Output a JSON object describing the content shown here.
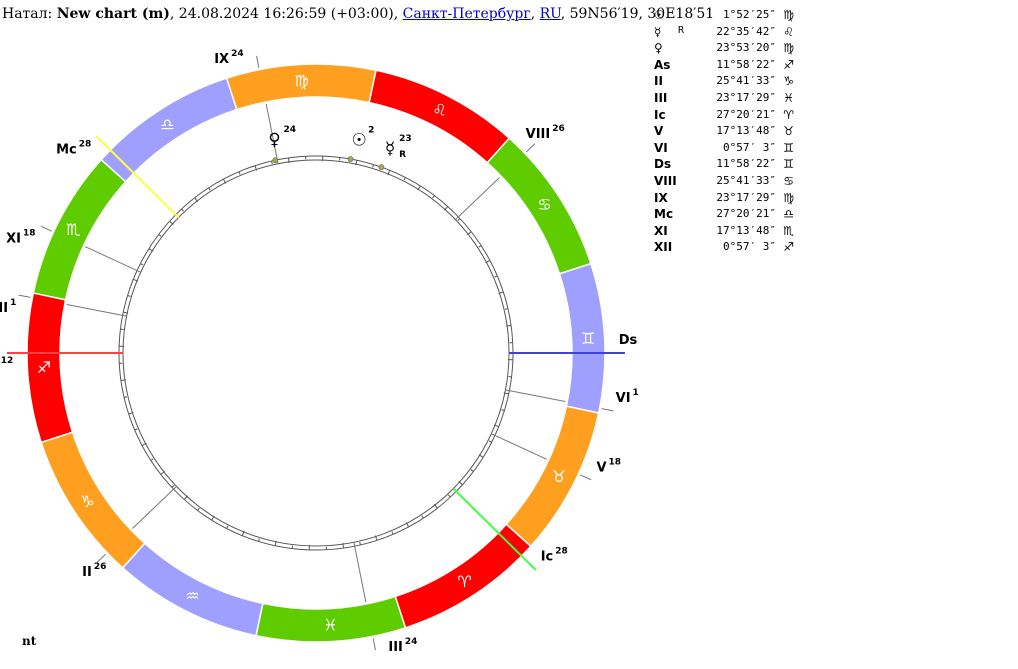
{
  "header": {
    "prefix": "Натал: ",
    "title": "New chart (m)",
    "datetime": ", 24.08.2024 16:26:59 (+03:00), ",
    "city": "Санкт-Петербург",
    "sep": ", ",
    "country": "RU",
    "coords": ", 59N56′19, 30E18′51"
  },
  "footer": {
    "text": "nt"
  },
  "colors": {
    "fire": "#ff0000",
    "earth": "#ff9f1f",
    "air": "#9f9fff",
    "water": "#5fcc00",
    "asc_line": "#ff4040",
    "dsc_line": "#3f3fdd",
    "mc_line": "#ffff40",
    "ic_line": "#40ff40",
    "planet_dot": "#aaaa44"
  },
  "wheel": {
    "ascendant_longitude": 251.97,
    "signs": [
      {
        "name": "aries",
        "glyph": "♈",
        "element": "fire"
      },
      {
        "name": "taurus",
        "glyph": "♉",
        "element": "earth"
      },
      {
        "name": "gemini",
        "glyph": "♊",
        "element": "air"
      },
      {
        "name": "cancer",
        "glyph": "♋",
        "element": "water"
      },
      {
        "name": "leo",
        "glyph": "♌",
        "element": "fire"
      },
      {
        "name": "virgo",
        "glyph": "♍",
        "element": "earth"
      },
      {
        "name": "libra",
        "glyph": "♎",
        "element": "air"
      },
      {
        "name": "scorpio",
        "glyph": "♏",
        "element": "water"
      },
      {
        "name": "sagittarius",
        "glyph": "♐",
        "element": "fire"
      },
      {
        "name": "capricorn",
        "glyph": "♑",
        "element": "earth"
      },
      {
        "name": "aquarius",
        "glyph": "♒",
        "element": "air"
      },
      {
        "name": "pisces",
        "glyph": "♓",
        "element": "water"
      }
    ],
    "cusps": [
      {
        "label": "As",
        "degree": "12",
        "longitude": 251.97,
        "angle": "asc"
      },
      {
        "label": "II",
        "degree": "26",
        "longitude": 295.69,
        "angle": ""
      },
      {
        "label": "III",
        "degree": "24",
        "longitude": 353.29,
        "angle": ""
      },
      {
        "label": "Ic",
        "degree": "28",
        "longitude": 27.34,
        "angle": "ic"
      },
      {
        "label": "V",
        "degree": "18",
        "longitude": 47.23,
        "angle": ""
      },
      {
        "label": "VI",
        "degree": "1",
        "longitude": 60.95,
        "angle": ""
      },
      {
        "label": "Ds",
        "degree": "12",
        "longitude": 71.97,
        "angle": "dsc"
      },
      {
        "label": "VIII",
        "degree": "26",
        "longitude": 115.69,
        "angle": ""
      },
      {
        "label": "IX",
        "degree": "24",
        "longitude": 173.29,
        "angle": ""
      },
      {
        "label": "Mc",
        "degree": "28",
        "longitude": 207.34,
        "angle": "mc"
      },
      {
        "label": "XI",
        "degree": "18",
        "longitude": 227.23,
        "angle": ""
      },
      {
        "label": "XII",
        "degree": "1",
        "longitude": 240.95,
        "angle": ""
      }
    ],
    "planets": [
      {
        "name": "sun",
        "glyph": "☉",
        "degree": "2",
        "retro": "",
        "longitude": 151.87,
        "glyph_longitude": 150.5
      },
      {
        "name": "mercury",
        "glyph": "☿",
        "degree": "23",
        "retro": "R",
        "longitude": 142.59,
        "glyph_longitude": 142.0
      },
      {
        "name": "venus",
        "glyph": "♀",
        "degree": "24",
        "retro": "",
        "longitude": 173.89,
        "glyph_longitude": 173.0
      }
    ]
  },
  "table": [
    {
      "symbol": "☉",
      "name": "sun",
      "retro": "",
      "position": "1°52′25″",
      "sign_glyph": "♍",
      "sign": "virgo"
    },
    {
      "symbol": "☿",
      "name": "mercury",
      "retro": "R",
      "position": "22°35′42″",
      "sign_glyph": "♌",
      "sign": "leo"
    },
    {
      "symbol": "♀",
      "name": "venus",
      "retro": "",
      "position": "23°53′20″",
      "sign_glyph": "♍",
      "sign": "virgo"
    },
    {
      "symbol": "As",
      "name": "ascendant",
      "retro": "",
      "position": "11°58′22″",
      "sign_glyph": "♐",
      "sign": "sagittarius"
    },
    {
      "symbol": "II",
      "name": "house-2",
      "retro": "",
      "position": "25°41′33″",
      "sign_glyph": "♑",
      "sign": "capricorn"
    },
    {
      "symbol": "III",
      "name": "house-3",
      "retro": "",
      "position": "23°17′29″",
      "sign_glyph": "♓",
      "sign": "pisces"
    },
    {
      "symbol": "Ic",
      "name": "imum-coeli",
      "retro": "",
      "position": "27°20′21″",
      "sign_glyph": "♈",
      "sign": "aries"
    },
    {
      "symbol": "V",
      "name": "house-5",
      "retro": "",
      "position": "17°13′48″",
      "sign_glyph": "♉",
      "sign": "taurus"
    },
    {
      "symbol": "VI",
      "name": "house-6",
      "retro": "",
      "position": "0°57′ 3″",
      "sign_glyph": "♊",
      "sign": "gemini"
    },
    {
      "symbol": "Ds",
      "name": "descendant",
      "retro": "",
      "position": "11°58′22″",
      "sign_glyph": "♊",
      "sign": "gemini"
    },
    {
      "symbol": "VIII",
      "name": "house-8",
      "retro": "",
      "position": "25°41′33″",
      "sign_glyph": "♋",
      "sign": "cancer"
    },
    {
      "symbol": "IX",
      "name": "house-9",
      "retro": "",
      "position": "23°17′29″",
      "sign_glyph": "♍",
      "sign": "virgo"
    },
    {
      "symbol": "Mc",
      "name": "medium-coeli",
      "retro": "",
      "position": "27°20′21″",
      "sign_glyph": "♎",
      "sign": "libra"
    },
    {
      "symbol": "XI",
      "name": "house-11",
      "retro": "",
      "position": "17°13′48″",
      "sign_glyph": "♏",
      "sign": "scorpio"
    },
    {
      "symbol": "XII",
      "name": "house-12",
      "retro": "",
      "position": "0°57′ 3″",
      "sign_glyph": "♐",
      "sign": "sagittarius"
    }
  ]
}
